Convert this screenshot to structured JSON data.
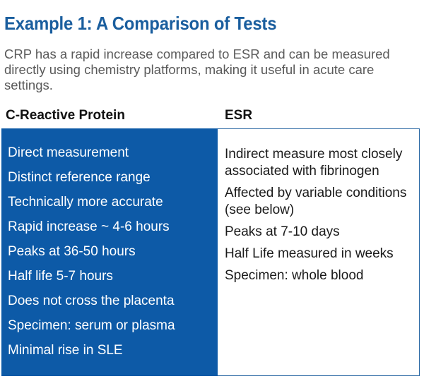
{
  "title": "Example 1: A Comparison of Tests",
  "intro": "CRP has a rapid increase compared to ESR and can be measured directly using chemistry platforms, making it useful in acute care settings.",
  "columns": {
    "left_heading": "C-Reactive Protein",
    "right_heading": "ESR"
  },
  "crp_items": [
    "Direct measurement",
    "Distinct reference range",
    "Technically more accurate",
    "Rapid increase ~ 4-6 hours",
    "Peaks at 36-50 hours",
    "Half life 5-7 hours",
    "Does not cross the placenta",
    "Specimen: serum or plasma",
    "Minimal rise in SLE"
  ],
  "esr_items": [
    "Indirect measure most closely associated with fibrinogen",
    "Affected by variable conditions (see below)",
    "Peaks at 7-10 days",
    "Half Life measured in weeks",
    "Specimen: whole blood"
  ],
  "colors": {
    "title": "#1a5e9e",
    "left_panel": "#0d5aa7",
    "intro_text": "#5a5a5a"
  }
}
